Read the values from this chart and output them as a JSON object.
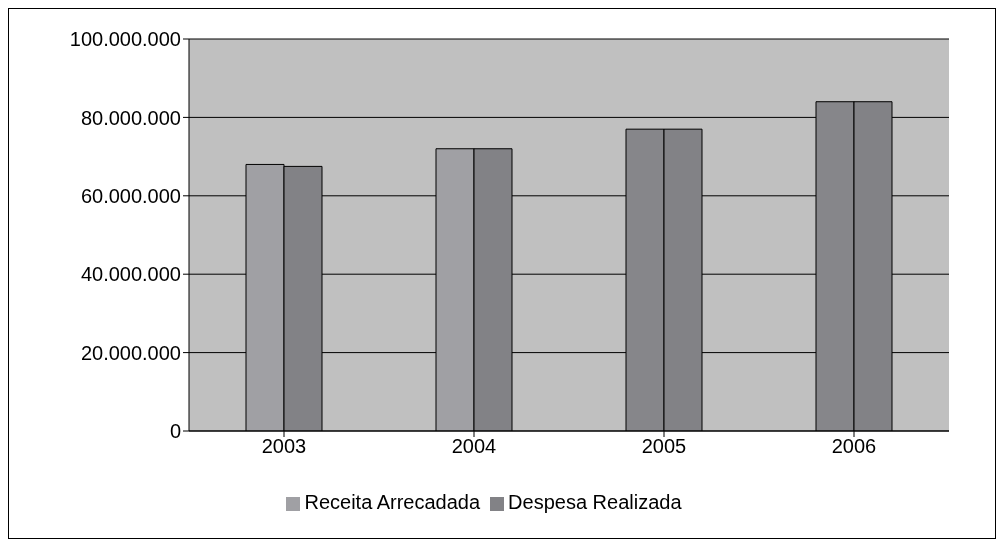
{
  "chart_data": {
    "type": "bar",
    "categories": [
      "2003",
      "2004",
      "2005",
      "2006"
    ],
    "series": [
      {
        "name": "Receita Arrecadada",
        "color": "#a0a0a4",
        "colors": [
          "#a0a0a4",
          "#a0a0a4",
          "#86868a",
          "#86868a"
        ],
        "values": [
          68000000,
          72000000,
          77000000,
          84000000
        ]
      },
      {
        "name": "Despesa Realizada",
        "color": "#828286",
        "values": [
          67500000,
          72000000,
          77000000,
          84000000
        ]
      }
    ],
    "ylim": [
      0,
      100000000
    ],
    "yticks": [
      {
        "value": 0,
        "label": "0"
      },
      {
        "value": 20000000,
        "label": "20.000.000"
      },
      {
        "value": 40000000,
        "label": "40.000.000"
      },
      {
        "value": 60000000,
        "label": "60.000.000"
      },
      {
        "value": 80000000,
        "label": "80.000.000"
      },
      {
        "value": 100000000,
        "label": "100.000.000"
      }
    ],
    "grid": "y",
    "legend": "bottom"
  }
}
